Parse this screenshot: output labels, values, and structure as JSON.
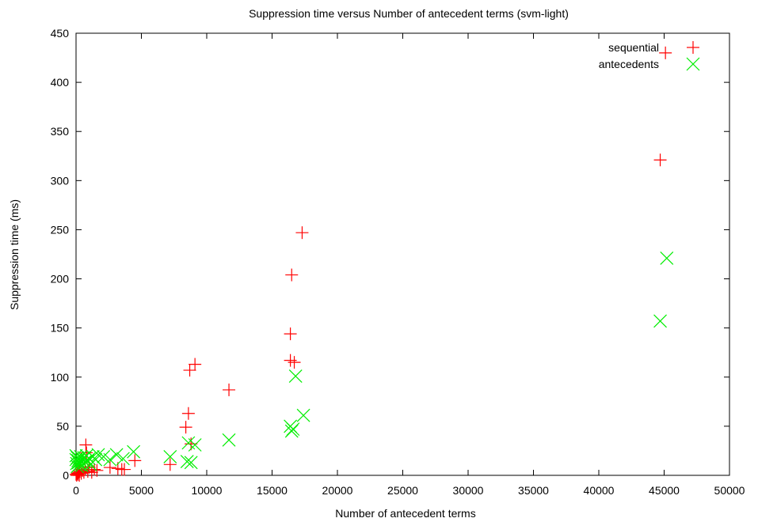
{
  "chart_data": {
    "type": "scatter",
    "title": "Suppression time versus Number of antecedent terms (svm-light)",
    "xlabel": "Number of antecedent terms",
    "ylabel": "Suppression time (ms)",
    "xlim": [
      0,
      50000
    ],
    "ylim": [
      0,
      450
    ],
    "x_ticks": [
      0,
      5000,
      10000,
      15000,
      20000,
      25000,
      30000,
      35000,
      40000,
      45000,
      50000
    ],
    "y_ticks": [
      0,
      50,
      100,
      150,
      200,
      250,
      300,
      350,
      400,
      450
    ],
    "grid": false,
    "legend_position": "top-right",
    "series": [
      {
        "name": "sequential",
        "marker": "plus",
        "color": "#ff0000",
        "points": [
          [
            0,
            1
          ],
          [
            50,
            0
          ],
          [
            100,
            2
          ],
          [
            150,
            1
          ],
          [
            200,
            3
          ],
          [
            250,
            0
          ],
          [
            300,
            4
          ],
          [
            400,
            2
          ],
          [
            500,
            5
          ],
          [
            600,
            3
          ],
          [
            700,
            6
          ],
          [
            750,
            31
          ],
          [
            800,
            23
          ],
          [
            900,
            4
          ],
          [
            1000,
            8
          ],
          [
            1200,
            3
          ],
          [
            1400,
            6
          ],
          [
            1600,
            5
          ],
          [
            2600,
            8
          ],
          [
            3200,
            7
          ],
          [
            3500,
            6
          ],
          [
            3700,
            6
          ],
          [
            4500,
            15
          ],
          [
            7200,
            11
          ],
          [
            8400,
            49
          ],
          [
            8600,
            63
          ],
          [
            8700,
            107
          ],
          [
            8800,
            32
          ],
          [
            9100,
            113
          ],
          [
            11700,
            87
          ],
          [
            16400,
            144
          ],
          [
            16400,
            117
          ],
          [
            16500,
            204
          ],
          [
            16700,
            115
          ],
          [
            17300,
            247
          ],
          [
            44700,
            321
          ],
          [
            45100,
            430
          ]
        ]
      },
      {
        "name": "antecedents",
        "marker": "cross",
        "color": "#00ee00",
        "points": [
          [
            0,
            20
          ],
          [
            0,
            16
          ],
          [
            50,
            12
          ],
          [
            100,
            18
          ],
          [
            100,
            9
          ],
          [
            150,
            15
          ],
          [
            200,
            13
          ],
          [
            250,
            17
          ],
          [
            300,
            11
          ],
          [
            350,
            19
          ],
          [
            400,
            14
          ],
          [
            450,
            10
          ],
          [
            500,
            16
          ],
          [
            550,
            12
          ],
          [
            600,
            18
          ],
          [
            700,
            14
          ],
          [
            800,
            20
          ],
          [
            900,
            15
          ],
          [
            1000,
            17
          ],
          [
            1100,
            11
          ],
          [
            1300,
            19
          ],
          [
            1500,
            16
          ],
          [
            1700,
            21
          ],
          [
            2100,
            19
          ],
          [
            2600,
            16
          ],
          [
            3100,
            21
          ],
          [
            3600,
            17
          ],
          [
            4400,
            24
          ],
          [
            7200,
            19
          ],
          [
            8500,
            14
          ],
          [
            8600,
            33
          ],
          [
            8800,
            13
          ],
          [
            9100,
            31
          ],
          [
            11700,
            36
          ],
          [
            16400,
            50
          ],
          [
            16500,
            45
          ],
          [
            16600,
            47
          ],
          [
            16800,
            101
          ],
          [
            17400,
            61
          ],
          [
            44700,
            157
          ],
          [
            45200,
            221
          ]
        ]
      }
    ]
  }
}
